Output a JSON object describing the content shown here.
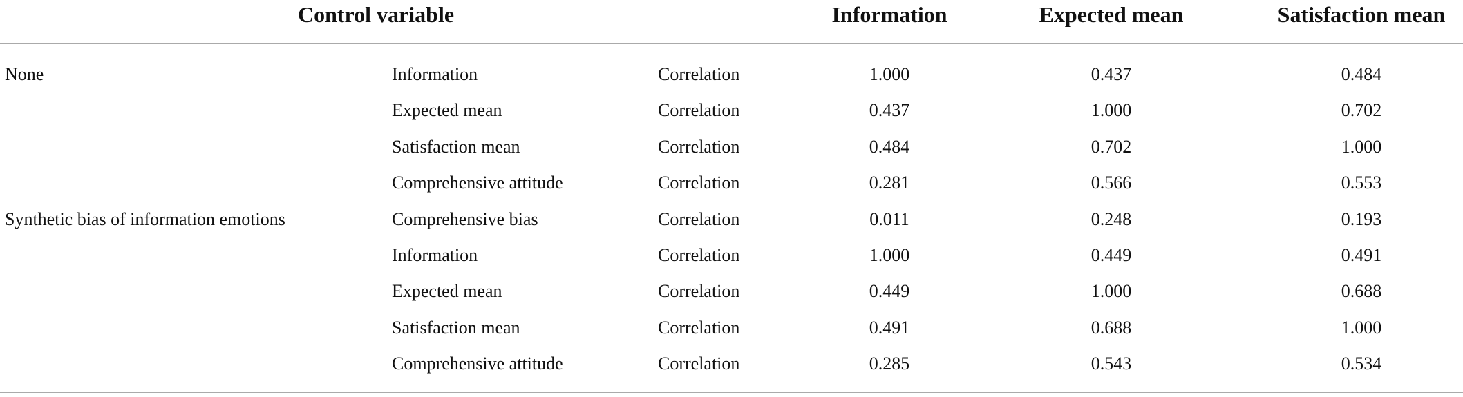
{
  "table": {
    "header": [
      "Control variable",
      "Information",
      "Expected mean",
      "Satisfaction mean"
    ],
    "groups": [
      {
        "control": "None",
        "rows": [
          {
            "variable": "Information",
            "statistic": "Correlation",
            "values": [
              "1.000",
              "0.437",
              "0.484"
            ]
          },
          {
            "variable": "Expected mean",
            "statistic": "Correlation",
            "values": [
              "0.437",
              "1.000",
              "0.702"
            ]
          },
          {
            "variable": "Satisfaction mean",
            "statistic": "Correlation",
            "values": [
              "0.484",
              "0.702",
              "1.000"
            ]
          },
          {
            "variable": "Comprehensive attitude",
            "statistic": "Correlation",
            "values": [
              "0.281",
              "0.566",
              "0.553"
            ]
          }
        ]
      },
      {
        "control": "Synthetic bias of information emotions",
        "rows": [
          {
            "variable": "Comprehensive bias",
            "statistic": "Correlation",
            "values": [
              "0.011",
              "0.248",
              "0.193"
            ]
          },
          {
            "variable": "Information",
            "statistic": "Correlation",
            "values": [
              "1.000",
              "0.449",
              "0.491"
            ]
          },
          {
            "variable": "Expected mean",
            "statistic": "Correlation",
            "values": [
              "0.449",
              "1.000",
              "0.688"
            ]
          },
          {
            "variable": "Satisfaction mean",
            "statistic": "Correlation",
            "values": [
              "0.491",
              "0.688",
              "1.000"
            ]
          },
          {
            "variable": "Comprehensive attitude",
            "statistic": "Correlation",
            "values": [
              "0.285",
              "0.543",
              "0.534"
            ]
          }
        ]
      }
    ]
  }
}
